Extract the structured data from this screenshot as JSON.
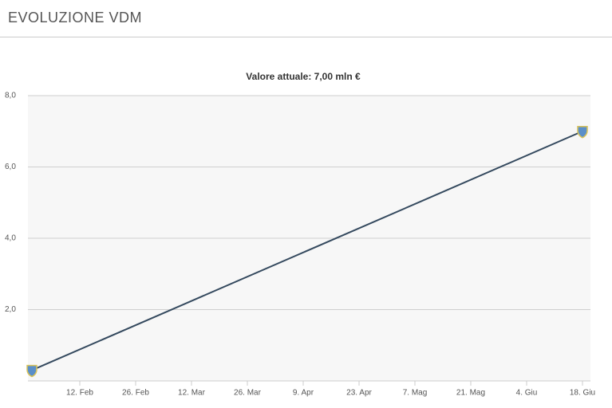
{
  "header": {
    "title": "EVOLUZIONE VDM"
  },
  "chart_data": {
    "type": "line",
    "title": "Valore attuale: 7,00 mln €",
    "x": [
      31,
      169
    ],
    "values": [
      0.3,
      7.0
    ],
    "color": "#34495e",
    "xlim": [
      30,
      171
    ],
    "xticks": [
      {
        "value": 43,
        "label": "12. Feb"
      },
      {
        "value": 57,
        "label": "26. Feb"
      },
      {
        "value": 71,
        "label": "12. Mar"
      },
      {
        "value": 85,
        "label": "26. Mar"
      },
      {
        "value": 99,
        "label": "9. Apr"
      },
      {
        "value": 113,
        "label": "23. Apr"
      },
      {
        "value": 127,
        "label": "7. Mag"
      },
      {
        "value": 141,
        "label": "21. Mag"
      },
      {
        "value": 155,
        "label": "4. Giu"
      },
      {
        "value": 169,
        "label": "18. Giu"
      }
    ],
    "ylim": [
      0,
      8
    ],
    "yticks": [
      {
        "value": 2,
        "label": "2,0"
      },
      {
        "value": 4,
        "label": "4,0"
      },
      {
        "value": 6,
        "label": "6,0"
      },
      {
        "value": 8,
        "label": "8,0"
      }
    ],
    "grid": true
  }
}
